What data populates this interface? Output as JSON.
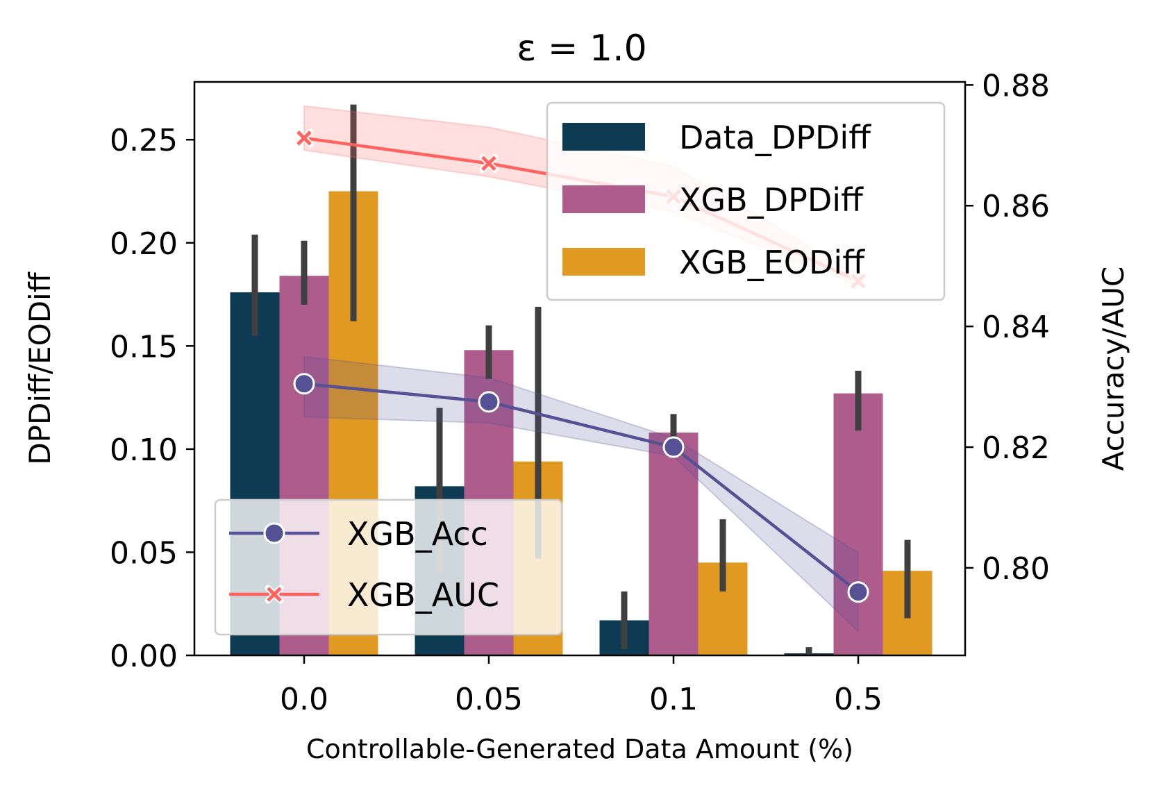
{
  "chart_data": {
    "type": "bar",
    "title": "ε = 1.0",
    "xlabel": "Controllable-Generated Data Amount (%)",
    "ylabel": "DPDiff/EODiff",
    "ylabel_right": "Accuracy/AUC",
    "categories": [
      "0.0",
      "0.05",
      "0.1",
      "0.5"
    ],
    "ylim": [
      0,
      0.278
    ],
    "yticks": [
      "0.00",
      "0.05",
      "0.10",
      "0.15",
      "0.20",
      "0.25"
    ],
    "ylim_right": [
      0.7855,
      0.8805
    ],
    "yticks_right": [
      "0.80",
      "0.82",
      "0.84",
      "0.86",
      "0.88"
    ],
    "series": [
      {
        "name": "Data_DPDiff",
        "color": "#0d3b53",
        "values": [
          0.176,
          0.082,
          0.017,
          0.001
        ],
        "err_low": [
          0.155,
          0.04,
          0.003,
          0.0
        ],
        "err_high": [
          0.204,
          0.12,
          0.031,
          0.004
        ]
      },
      {
        "name": "XGB_DPDiff",
        "color": "#ad5c8c",
        "values": [
          0.184,
          0.148,
          0.108,
          0.127
        ],
        "err_low": [
          0.17,
          0.134,
          0.102,
          0.109
        ],
        "err_high": [
          0.201,
          0.16,
          0.117,
          0.138
        ]
      },
      {
        "name": "XGB_EODiff",
        "color": "#e09a22",
        "values": [
          0.225,
          0.094,
          0.045,
          0.041
        ],
        "err_low": [
          0.162,
          0.047,
          0.031,
          0.018
        ],
        "err_high": [
          0.267,
          0.169,
          0.066,
          0.056
        ]
      }
    ],
    "line_series": [
      {
        "name": "XGB_Acc",
        "color": "#565194",
        "marker": "circle",
        "values": [
          0.8305,
          0.8275,
          0.82,
          0.796
        ],
        "band_low": [
          0.825,
          0.824,
          0.8185,
          0.7895
        ],
        "band_high": [
          0.835,
          0.8315,
          0.8215,
          0.8025
        ]
      },
      {
        "name": "XGB_AUC",
        "color": "#ff6460",
        "marker": "x",
        "values": [
          0.8712,
          0.867,
          0.8615,
          0.8475
        ],
        "band_low": [
          0.8692,
          0.8648,
          0.859,
          0.8468
        ],
        "band_high": [
          0.8765,
          0.873,
          0.8665,
          0.8485
        ]
      }
    ],
    "legend_bars_position": "top-right",
    "legend_lines_position": "bottom-left"
  }
}
